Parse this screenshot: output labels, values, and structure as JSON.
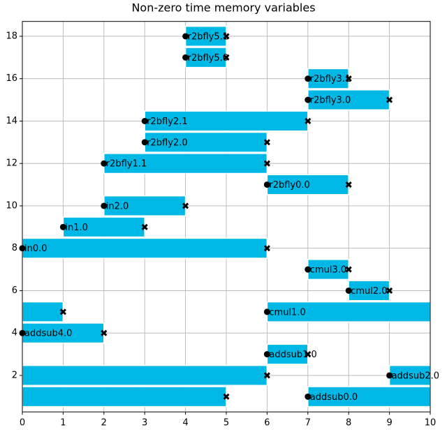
{
  "chart_data": {
    "type": "interval",
    "title": "Non-zero time memory variables",
    "color": "#00b8e6",
    "xlim": [
      0,
      10
    ],
    "xticks": [
      0,
      1,
      2,
      3,
      4,
      5,
      6,
      7,
      8,
      9,
      10
    ],
    "ylim": [
      0.28,
      18.7
    ],
    "yticks": [
      2,
      4,
      6,
      8,
      10,
      12,
      14,
      16,
      18
    ],
    "grid": true,
    "series": [
      {
        "name": "r2bfly5.1",
        "row": 18,
        "start": 4,
        "end": 5
      },
      {
        "name": "r2bfly5.0",
        "row": 17,
        "start": 4,
        "end": 5
      },
      {
        "name": "r2bfly3.1",
        "row": 16,
        "start": 7,
        "end": 8
      },
      {
        "name": "r2bfly3.0",
        "row": 15,
        "start": 7,
        "end": 9
      },
      {
        "name": "r2bfly2.1",
        "row": 14,
        "start": 3,
        "end": 7
      },
      {
        "name": "r2bfly2.0",
        "row": 13,
        "start": 3,
        "end": 6
      },
      {
        "name": "r2bfly1.1",
        "row": 12,
        "start": 2,
        "end": 6
      },
      {
        "name": "r2bfly0.0",
        "row": 11,
        "start": 6,
        "end": 8
      },
      {
        "name": "in2.0",
        "row": 10,
        "start": 2,
        "end": 4
      },
      {
        "name": "in1.0",
        "row": 9,
        "start": 1,
        "end": 3
      },
      {
        "name": "in0.0",
        "row": 8,
        "start": 0,
        "end": 6
      },
      {
        "name": "cmul3.0",
        "row": 7,
        "start": 7,
        "end": 8
      },
      {
        "name": "cmul2.0",
        "row": 6,
        "start": 8,
        "end": 9
      },
      {
        "name": "cmul1.0",
        "row": 5,
        "start": 6,
        "end": 1
      },
      {
        "name": "addsub4.0",
        "row": 4,
        "start": 0,
        "end": 2
      },
      {
        "name": "addsub1.0",
        "row": 3,
        "start": 6,
        "end": 7
      },
      {
        "name": "addsub2.0",
        "row": 2,
        "start": 9,
        "end": 6
      },
      {
        "name": "addsub0.0",
        "row": 1,
        "start": 7,
        "end": 5
      }
    ]
  }
}
